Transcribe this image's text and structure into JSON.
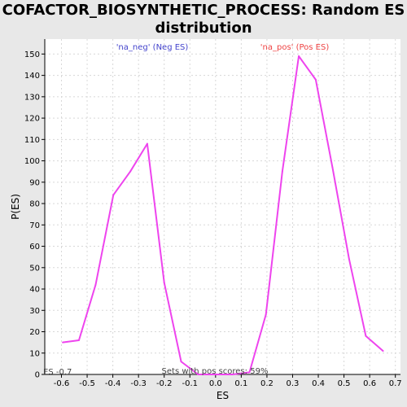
{
  "chart_data": {
    "type": "line",
    "title": "COFACTOR_BIOSYNTHETIC_PROCESS: Random ES distribution",
    "title_lines": [
      "COFACTOR_BIOSYNTHETIC_PROCESS: Random ES",
      "distribution"
    ],
    "xlabel": "ES",
    "ylabel": "P(ES)",
    "xlim": [
      -0.665,
      0.72
    ],
    "ylim": [
      0,
      157
    ],
    "x_ticks": [
      -0.6,
      -0.5,
      -0.4,
      -0.3,
      -0.2,
      -0.1,
      0.0,
      0.1,
      0.2,
      0.3,
      0.4,
      0.5,
      0.6,
      0.7
    ],
    "x_tick_labels": [
      "-0.6",
      "-0.5",
      "-0.4",
      "-0.3",
      "-0.2",
      "-0.1",
      "0.0",
      "0.1",
      "0.2",
      "0.3",
      "0.4",
      "0.5",
      "0.6",
      "0.7"
    ],
    "y_ticks": [
      0,
      10,
      20,
      30,
      40,
      50,
      60,
      70,
      80,
      90,
      100,
      110,
      120,
      130,
      140,
      150
    ],
    "y_tick_labels": [
      "0",
      "10",
      "20",
      "30",
      "40",
      "50",
      "60",
      "70",
      "80",
      "90",
      "100",
      "110",
      "120",
      "130",
      "140",
      "150"
    ],
    "grid": true,
    "series": [
      {
        "color": "#ee44ee",
        "x": [
          -0.595,
          -0.532,
          -0.467,
          -0.398,
          -0.332,
          -0.266,
          -0.2,
          -0.134,
          -0.068,
          0.0,
          0.066,
          0.132,
          0.196,
          0.26,
          0.324,
          0.39,
          0.455,
          0.52,
          0.585,
          0.652
        ],
        "y": [
          15,
          16,
          42,
          84,
          95,
          108,
          43,
          6,
          0,
          0,
          0,
          1,
          28,
          95,
          149,
          138,
          97,
          54,
          18,
          11
        ]
      }
    ],
    "annotations": {
      "neg_label": "'na_neg' (Neg ES)",
      "pos_label": "'na_pos' (Pos ES)",
      "es_value": "ES -0.7",
      "pos_scores": "Sets with pos scores: 59%"
    },
    "colors": {
      "neg": "#4444cc",
      "pos": "#ee4444",
      "line": "#ee44ee",
      "grid": "#d8d8d8"
    }
  }
}
